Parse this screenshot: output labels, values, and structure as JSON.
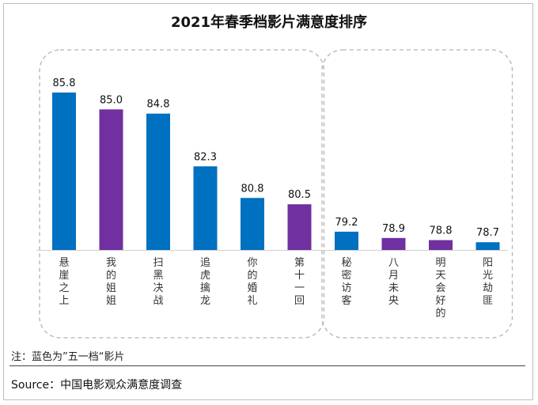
{
  "chart_data": {
    "type": "bar",
    "title": "2021年春季档影片满意度排序",
    "categories": [
      "悬崖之上",
      "我的姐姐",
      "扫黑决战",
      "追虎擒龙",
      "你的婚礼",
      "第十一回",
      "秘密访客",
      "八月未央",
      "明天会好的",
      "阳光劫匪"
    ],
    "values": [
      85.8,
      85.0,
      84.8,
      82.3,
      80.8,
      80.5,
      79.2,
      78.9,
      78.8,
      78.7
    ],
    "value_labels": [
      "85.8",
      "85.0",
      "84.8",
      "82.3",
      "80.8",
      "80.5",
      "79.2",
      "78.9",
      "78.8",
      "78.7"
    ],
    "bar_colors": [
      "#0070C0",
      "#7030A0",
      "#0070C0",
      "#0070C0",
      "#0070C0",
      "#7030A0",
      "#0070C0",
      "#7030A0",
      "#7030A0",
      "#0070C0"
    ],
    "groups": [
      {
        "indices": [
          0,
          1,
          2,
          3,
          4,
          5
        ]
      },
      {
        "indices": [
          6,
          7,
          8,
          9
        ]
      }
    ],
    "grid": false,
    "xlabel": "",
    "ylabel": ""
  },
  "note": "注：蓝色为”五一档“影片",
  "source": "Source：中国电影观众满意度调查"
}
